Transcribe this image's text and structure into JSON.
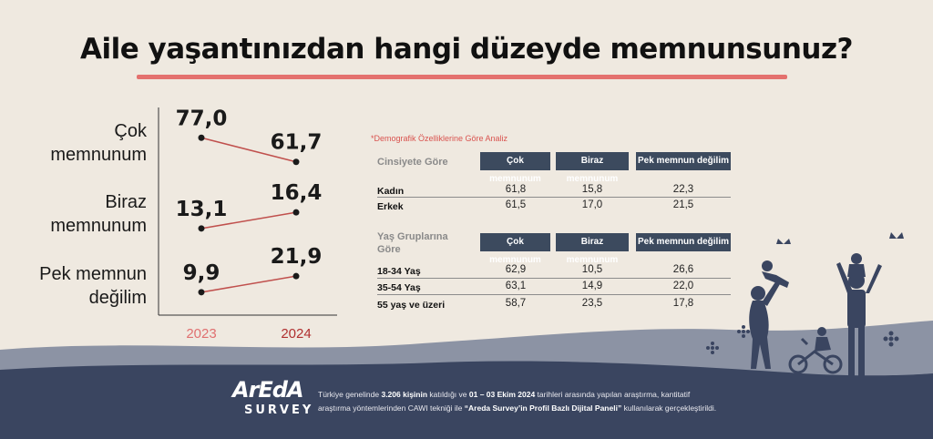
{
  "title": "Aile yaşantınızdan hangi düzeyde memnunsunuz?",
  "colors": {
    "accent_red": "#e4716e",
    "line_red": "#c0504d",
    "dark": "#1a1a1a",
    "header_navy": "#3c4a5e",
    "year_2023": "#e07070",
    "year_2024": "#b03030",
    "hill_dark": "#3a4560",
    "hill_light": "#6b7590"
  },
  "chart_data": {
    "type": "line",
    "x": [
      "2023",
      "2024"
    ],
    "series": [
      {
        "name": "Çok memnunum",
        "label_lines": [
          "Çok",
          "memnunum"
        ],
        "values": [
          77.0,
          61.7
        ],
        "labels": [
          "77,0",
          "61,7"
        ]
      },
      {
        "name": "Biraz memnunum",
        "label_lines": [
          "Biraz",
          "memnunum"
        ],
        "values": [
          13.1,
          16.4
        ],
        "labels": [
          "13,1",
          "16,4"
        ]
      },
      {
        "name": "Pek memnun değilim",
        "label_lines": [
          "Pek memnun",
          "değilim"
        ],
        "values": [
          9.9,
          21.9
        ],
        "labels": [
          "9,9",
          "21,9"
        ]
      }
    ]
  },
  "demographics": {
    "note": "*Demografik Özelliklerine Göre Analiz",
    "gender": {
      "title": "Cinsiyete Göre",
      "columns": [
        "Çok memnunum",
        "Biraz memnunum",
        "Pek memnun değilim"
      ],
      "rows": [
        {
          "label": "Kadın",
          "values": [
            "61,8",
            "15,8",
            "22,3"
          ]
        },
        {
          "label": "Erkek",
          "values": [
            "61,5",
            "17,0",
            "21,5"
          ]
        }
      ]
    },
    "age": {
      "title_lines": [
        "Yaş Gruplarına",
        "Göre"
      ],
      "columns": [
        "Çok memnunum",
        "Biraz memnunum",
        "Pek memnun değilim"
      ],
      "rows": [
        {
          "label": "18-34 Yaş",
          "values": [
            "62,9",
            "10,5",
            "26,6"
          ]
        },
        {
          "label": "35-54 Yaş",
          "values": [
            "63,1",
            "14,9",
            "22,0"
          ]
        },
        {
          "label": "55 yaş ve üzeri",
          "values": [
            "58,7",
            "23,5",
            "17,8"
          ]
        }
      ]
    }
  },
  "logo": {
    "top": "ArEdA",
    "bottom": "SURVEY"
  },
  "footnote": {
    "p1": "Türkiye genelinde ",
    "b1": "3.206 kişinin",
    "p2": " katıldığı ve ",
    "b2": "01 – 03 Ekim 2024",
    "p3": " tarihleri arasında yapılan araştırma, kantitatif araştırma yöntemlerinden CAWI tekniği ile ",
    "b3": "“Areda Survey’in Profil Bazlı Dijital Paneli”",
    "p4": " kullanılarak gerçekleştirildi."
  },
  "icons": [
    "family-silhouette-icon",
    "butterfly-icon",
    "flower-icon"
  ]
}
